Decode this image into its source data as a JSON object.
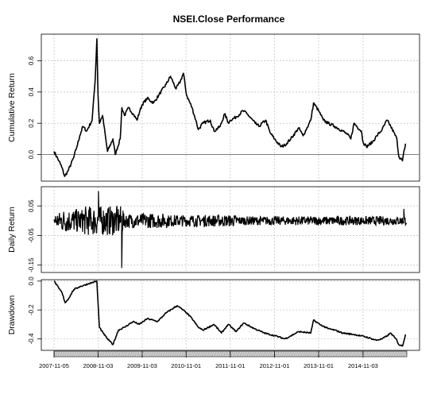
{
  "chart_data": {
    "type": "line",
    "title": "NSEI.Close Performance",
    "date_labels": [
      "2007-11-05",
      "2008-11-03",
      "2009-11-03",
      "2010-11-01",
      "2011-11-01",
      "2012-11-01",
      "2013-11-01",
      "2014-11-03"
    ],
    "panels": [
      {
        "id": "cumulative",
        "ylabel": "Cumulative Return",
        "ylim": [
          -0.17,
          0.77
        ],
        "yticks": [
          "0.0",
          "0.2",
          "0.4",
          "0.6"
        ],
        "ytick_values": [
          0.0,
          0.2,
          0.4,
          0.6
        ],
        "reference_line": 0,
        "series": [
          {
            "x": [
              "2007-11-05",
              "2007-12-15",
              "2008-01-08",
              "2008-02-01",
              "2008-03-03",
              "2008-04-15",
              "2008-05-12",
              "2008-06-05",
              "2008-06-30",
              "2008-08-01",
              "2008-09-15",
              "2008-10-10",
              "2008-10-24",
              "2008-11-03",
              "2008-11-14",
              "2008-12-10",
              "2009-01-20",
              "2009-03-06",
              "2009-03-25",
              "2009-05-05",
              "2009-05-19",
              "2009-06-10",
              "2009-07-15",
              "2009-08-20",
              "2009-09-21",
              "2009-10-15",
              "2009-11-03",
              "2009-12-15",
              "2010-02-05",
              "2010-03-20",
              "2010-05-20",
              "2010-06-25",
              "2010-08-10",
              "2010-09-15",
              "2010-10-10",
              "2010-11-05",
              "2010-12-20",
              "2011-01-20",
              "2011-02-10",
              "2011-03-20",
              "2011-05-20",
              "2011-06-20",
              "2011-08-10",
              "2011-09-15",
              "2011-10-20",
              "2011-11-01",
              "2011-12-20",
              "2012-02-15",
              "2012-03-20",
              "2012-05-25",
              "2012-06-25",
              "2012-08-20",
              "2012-09-25",
              "2012-11-01",
              "2012-12-25",
              "2013-01-25",
              "2013-03-15",
              "2013-05-20",
              "2013-06-25",
              "2013-08-28",
              "2013-09-20",
              "2013-11-01",
              "2013-12-10",
              "2014-01-20",
              "2014-03-15",
              "2014-05-20",
              "2014-06-25",
              "2014-07-25",
              "2014-08-20",
              "2014-10-20",
              "2014-11-03",
              "2014-12-01",
              "2015-01-20",
              "2015-02-25",
              "2015-04-10",
              "2015-05-20",
              "2015-06-20",
              "2015-08-10",
              "2015-08-25",
              "2015-09-25",
              "2015-10-20"
            ],
            "values": [
              0.02,
              -0.04,
              -0.08,
              -0.14,
              -0.1,
              -0.02,
              0.05,
              0.12,
              0.18,
              0.15,
              0.22,
              0.48,
              0.74,
              0.38,
              0.2,
              0.25,
              0.02,
              0.1,
              0.0,
              0.1,
              0.3,
              0.25,
              0.3,
              0.26,
              0.22,
              0.28,
              0.32,
              0.36,
              0.33,
              0.38,
              0.45,
              0.5,
              0.42,
              0.47,
              0.52,
              0.38,
              0.3,
              0.22,
              0.16,
              0.2,
              0.22,
              0.15,
              0.18,
              0.26,
              0.2,
              0.22,
              0.24,
              0.28,
              0.26,
              0.2,
              0.18,
              0.22,
              0.14,
              0.1,
              0.05,
              0.06,
              0.1,
              0.17,
              0.12,
              0.22,
              0.33,
              0.28,
              0.22,
              0.2,
              0.18,
              0.15,
              0.13,
              0.1,
              0.2,
              0.15,
              0.08,
              0.05,
              0.08,
              0.12,
              0.16,
              0.22,
              0.18,
              0.1,
              -0.01,
              -0.04,
              0.07
            ]
          }
        ]
      },
      {
        "id": "daily",
        "ylabel": "Daily Return",
        "ylim": [
          -0.175,
          0.115
        ],
        "yticks": [
          "-0.15",
          "-0.05",
          "0.05"
        ],
        "ytick_values": [
          -0.15,
          -0.05,
          0.05
        ],
        "series": [
          {
            "x_range": [
              "2007-11-05",
              "2015-10-31"
            ],
            "volatility_periods": [
              {
                "from": "2007-11-05",
                "to": "2008-01-01",
                "abs_daily": 0.03
              },
              {
                "from": "2008-01-01",
                "to": "2008-07-01",
                "abs_daily": 0.04
              },
              {
                "from": "2008-07-01",
                "to": "2009-06-01",
                "abs_daily": 0.05
              },
              {
                "from": "2009-06-01",
                "to": "2010-06-01",
                "abs_daily": 0.025
              },
              {
                "from": "2010-06-01",
                "to": "2012-01-01",
                "abs_daily": 0.02
              },
              {
                "from": "2012-01-01",
                "to": "2015-10-31",
                "abs_daily": 0.015
              }
            ],
            "extremes": [
              {
                "date": "2008-11-06",
                "value": 0.1
              },
              {
                "date": "2009-05-18",
                "value": -0.16
              },
              {
                "date": "2015-10-06",
                "value": 0.04
              }
            ]
          }
        ]
      },
      {
        "id": "drawdown",
        "ylabel": "Drawdown",
        "ylim": [
          -0.48,
          0.01
        ],
        "yticks": [
          "0.0",
          "-0.2",
          "-0.4"
        ],
        "ytick_values": [
          0.0,
          -0.2,
          -0.4
        ],
        "series": [
          {
            "x": [
              "2007-11-05",
              "2007-12-15",
              "2008-01-10",
              "2008-02-05",
              "2008-03-05",
              "2008-04-15",
              "2008-06-01",
              "2008-08-10",
              "2008-10-24",
              "2008-11-03",
              "2008-11-14",
              "2008-12-15",
              "2009-01-20",
              "2009-03-06",
              "2009-04-20",
              "2009-06-10",
              "2009-08-20",
              "2009-10-10",
              "2009-12-15",
              "2010-03-10",
              "2010-05-20",
              "2010-08-20",
              "2010-11-05",
              "2010-12-20",
              "2011-02-10",
              "2011-03-20",
              "2011-06-20",
              "2011-08-20",
              "2011-10-15",
              "2011-12-20",
              "2012-02-20",
              "2012-05-20",
              "2012-08-10",
              "2012-11-10",
              "2013-01-25",
              "2013-03-15",
              "2013-05-20",
              "2013-08-28",
              "2013-09-20",
              "2013-11-10",
              "2014-01-20",
              "2014-03-15",
              "2014-05-20",
              "2014-08-20",
              "2014-10-20",
              "2014-12-10",
              "2015-02-20",
              "2015-04-10",
              "2015-05-20",
              "2015-06-20",
              "2015-08-10",
              "2015-08-25",
              "2015-09-25",
              "2015-10-20"
            ],
            "values": [
              0.0,
              -0.05,
              -0.08,
              -0.15,
              -0.12,
              -0.06,
              -0.04,
              -0.02,
              0.0,
              -0.15,
              -0.32,
              -0.36,
              -0.4,
              -0.44,
              -0.34,
              -0.32,
              -0.28,
              -0.3,
              -0.26,
              -0.28,
              -0.22,
              -0.17,
              -0.22,
              -0.26,
              -0.32,
              -0.34,
              -0.3,
              -0.36,
              -0.3,
              -0.35,
              -0.29,
              -0.33,
              -0.36,
              -0.38,
              -0.4,
              -0.38,
              -0.35,
              -0.36,
              -0.27,
              -0.3,
              -0.33,
              -0.34,
              -0.36,
              -0.37,
              -0.38,
              -0.39,
              -0.41,
              -0.4,
              -0.38,
              -0.36,
              -0.41,
              -0.44,
              -0.45,
              -0.37
            ]
          }
        ]
      }
    ]
  }
}
